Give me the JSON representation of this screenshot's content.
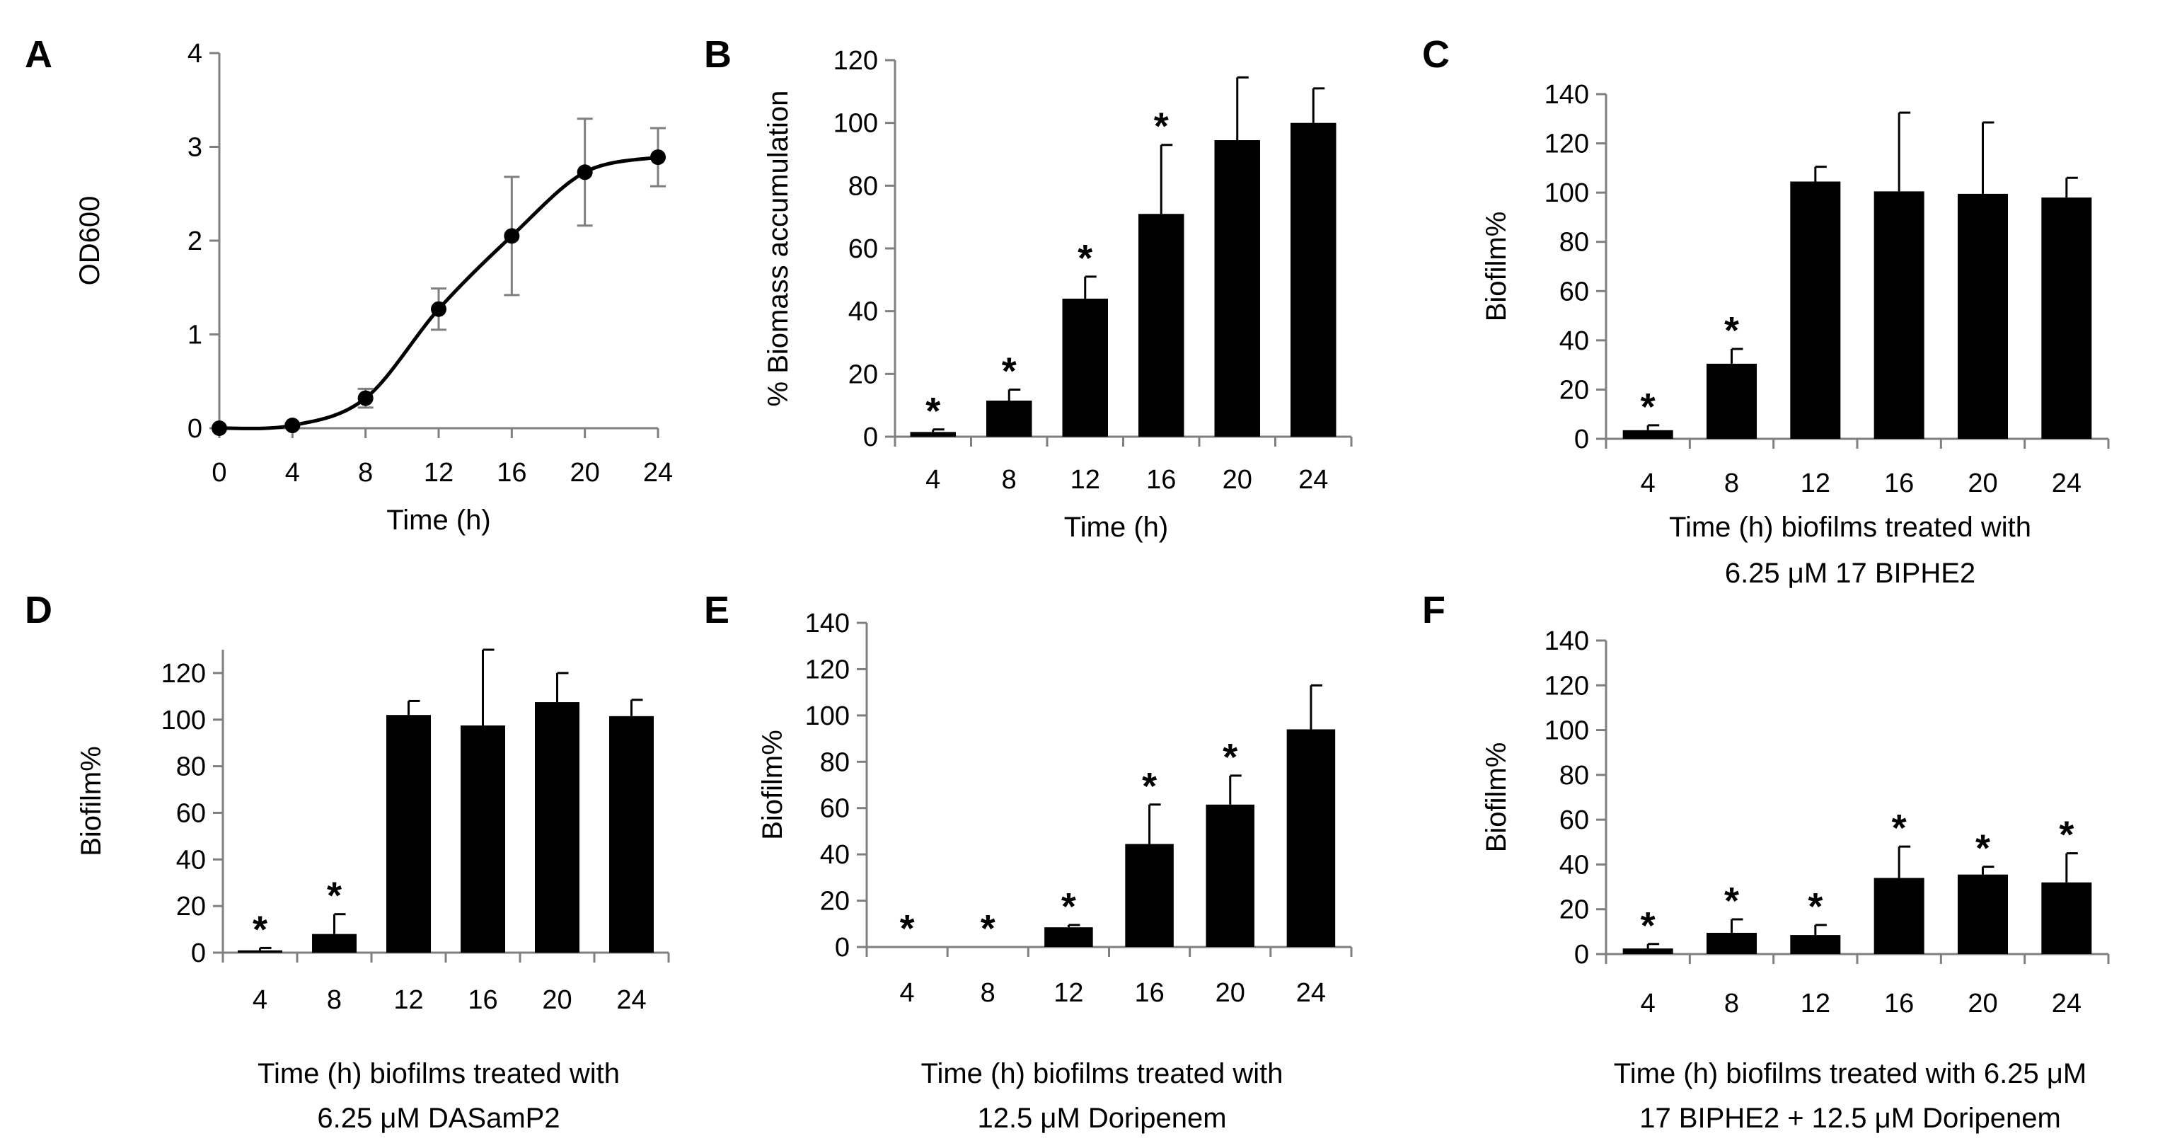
{
  "chart_data": [
    {
      "id": "A",
      "type": "line",
      "panel_label": "A",
      "xlabel_lines": [
        "Time (h)"
      ],
      "ylabel": "OD600",
      "x": [
        0,
        4,
        8,
        12,
        16,
        20,
        24
      ],
      "values": [
        0,
        0.03,
        0.32,
        1.27,
        2.05,
        2.73,
        2.89
      ],
      "errors": [
        0,
        0.02,
        0.1,
        0.22,
        0.63,
        0.57,
        0.31
      ],
      "xlim": [
        0,
        24
      ],
      "ylim": [
        0,
        4
      ],
      "xticks": [
        0,
        4,
        8,
        12,
        16,
        20,
        24
      ],
      "yticks": [
        0,
        1,
        2,
        3,
        4
      ]
    },
    {
      "id": "B",
      "type": "bar",
      "panel_label": "B",
      "xlabel_lines": [
        "Time (h)"
      ],
      "ylabel": "% Biomass accumulation",
      "categories": [
        "4",
        "8",
        "12",
        "16",
        "20",
        "24"
      ],
      "values": [
        1.5,
        11.5,
        44,
        71,
        94.5,
        100
      ],
      "errors": [
        0.8,
        3.5,
        7,
        22,
        20,
        11
      ],
      "significant": [
        true,
        true,
        true,
        true,
        false,
        false
      ],
      "ylim": [
        0,
        120
      ],
      "yticks": [
        0,
        20,
        40,
        60,
        80,
        100,
        120
      ]
    },
    {
      "id": "C",
      "type": "bar",
      "panel_label": "C",
      "xlabel_lines": [
        "Time (h) biofilms treated with",
        "6.25 μM 17 BIPHE2"
      ],
      "ylabel": "Biofilm%",
      "categories": [
        "4",
        "8",
        "12",
        "16",
        "20",
        "24"
      ],
      "values": [
        3.5,
        30.5,
        104.5,
        100.5,
        99.5,
        98
      ],
      "errors": [
        2,
        6,
        6,
        32,
        29,
        8
      ],
      "significant": [
        true,
        true,
        false,
        false,
        false,
        false
      ],
      "ylim": [
        0,
        140
      ],
      "yticks": [
        0,
        20,
        40,
        60,
        80,
        100,
        120,
        140
      ]
    },
    {
      "id": "D",
      "type": "bar",
      "panel_label": "D",
      "xlabel_lines": [
        "Time (h) biofilms treated with",
        "6.25 μM DASamP2"
      ],
      "ylabel": "Biofilm%",
      "categories": [
        "4",
        "8",
        "12",
        "16",
        "20",
        "24"
      ],
      "values": [
        1,
        8,
        102,
        97.5,
        107.5,
        101.5
      ],
      "errors": [
        1,
        8.5,
        6,
        32.5,
        12.5,
        7
      ],
      "significant": [
        true,
        true,
        false,
        false,
        false,
        false
      ],
      "ylim": [
        0,
        130
      ],
      "yticks": [
        0,
        20,
        40,
        60,
        80,
        100,
        120
      ]
    },
    {
      "id": "E",
      "type": "bar",
      "panel_label": "E",
      "xlabel_lines": [
        "Time (h) biofilms treated with",
        "12.5 μM Doripenem"
      ],
      "ylabel": "Biofilm%",
      "categories": [
        "4",
        "8",
        "12",
        "16",
        "20",
        "24"
      ],
      "values": [
        0,
        0,
        8.5,
        44.5,
        61.5,
        94
      ],
      "errors": [
        0,
        0,
        1,
        17,
        12.5,
        19
      ],
      "significant": [
        true,
        true,
        true,
        true,
        true,
        false
      ],
      "ylim": [
        0,
        140
      ],
      "yticks": [
        0,
        20,
        40,
        60,
        80,
        100,
        120,
        140
      ]
    },
    {
      "id": "F",
      "type": "bar",
      "panel_label": "F",
      "xlabel_lines": [
        "Time (h) biofilms treated with 6.25 μM",
        "17 BIPHE2 + 12.5 μM Doripenem"
      ],
      "ylabel": "Biofilm%",
      "categories": [
        "4",
        "8",
        "12",
        "16",
        "20",
        "24"
      ],
      "values": [
        2.5,
        9.5,
        8.5,
        34,
        35.5,
        32
      ],
      "errors": [
        2,
        6,
        4.5,
        14,
        3.5,
        13
      ],
      "significant": [
        true,
        true,
        true,
        true,
        true,
        true
      ],
      "ylim": [
        0,
        140
      ],
      "yticks": [
        0,
        20,
        40,
        60,
        80,
        100,
        120,
        140
      ]
    }
  ],
  "colors": {
    "bar": "#000000",
    "axis": "#7f7f7f",
    "line": "#000000",
    "errorbar_A": "#7f7f7f"
  },
  "significance_marker": "*"
}
